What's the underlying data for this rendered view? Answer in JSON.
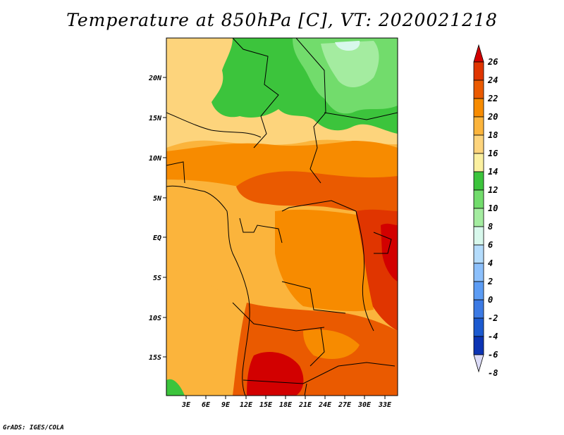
{
  "title": "Temperature at 850hPa [C], VT: 2020021218",
  "credit": "GrADS: IGES/COLA",
  "map": {
    "lat_labels": [
      "20N",
      "15N",
      "10N",
      "5N",
      "EQ",
      "5S",
      "10S",
      "15S"
    ],
    "lon_labels": [
      "3E",
      "6E",
      "9E",
      "12E",
      "15E",
      "18E",
      "21E",
      "24E",
      "27E",
      "30E",
      "33E"
    ]
  },
  "colorbar": {
    "labels": [
      "26",
      "24",
      "22",
      "20",
      "18",
      "16",
      "14",
      "12",
      "10",
      "8",
      "6",
      "4",
      "2",
      "0",
      "-2",
      "-4",
      "-6",
      "-8"
    ],
    "colors": [
      "#d20000",
      "#e03500",
      "#ea5a00",
      "#f78b00",
      "#fbb43c",
      "#fdd47c",
      "#fbf0a0",
      "#3cc43c",
      "#72dc6c",
      "#a4ecA0",
      "#d8f8ec",
      "#b4dcfc",
      "#8cc0fc",
      "#5c9cf4",
      "#3c7ae4",
      "#1c5ad0",
      "#0c34b4",
      "#060c70"
    ]
  }
}
